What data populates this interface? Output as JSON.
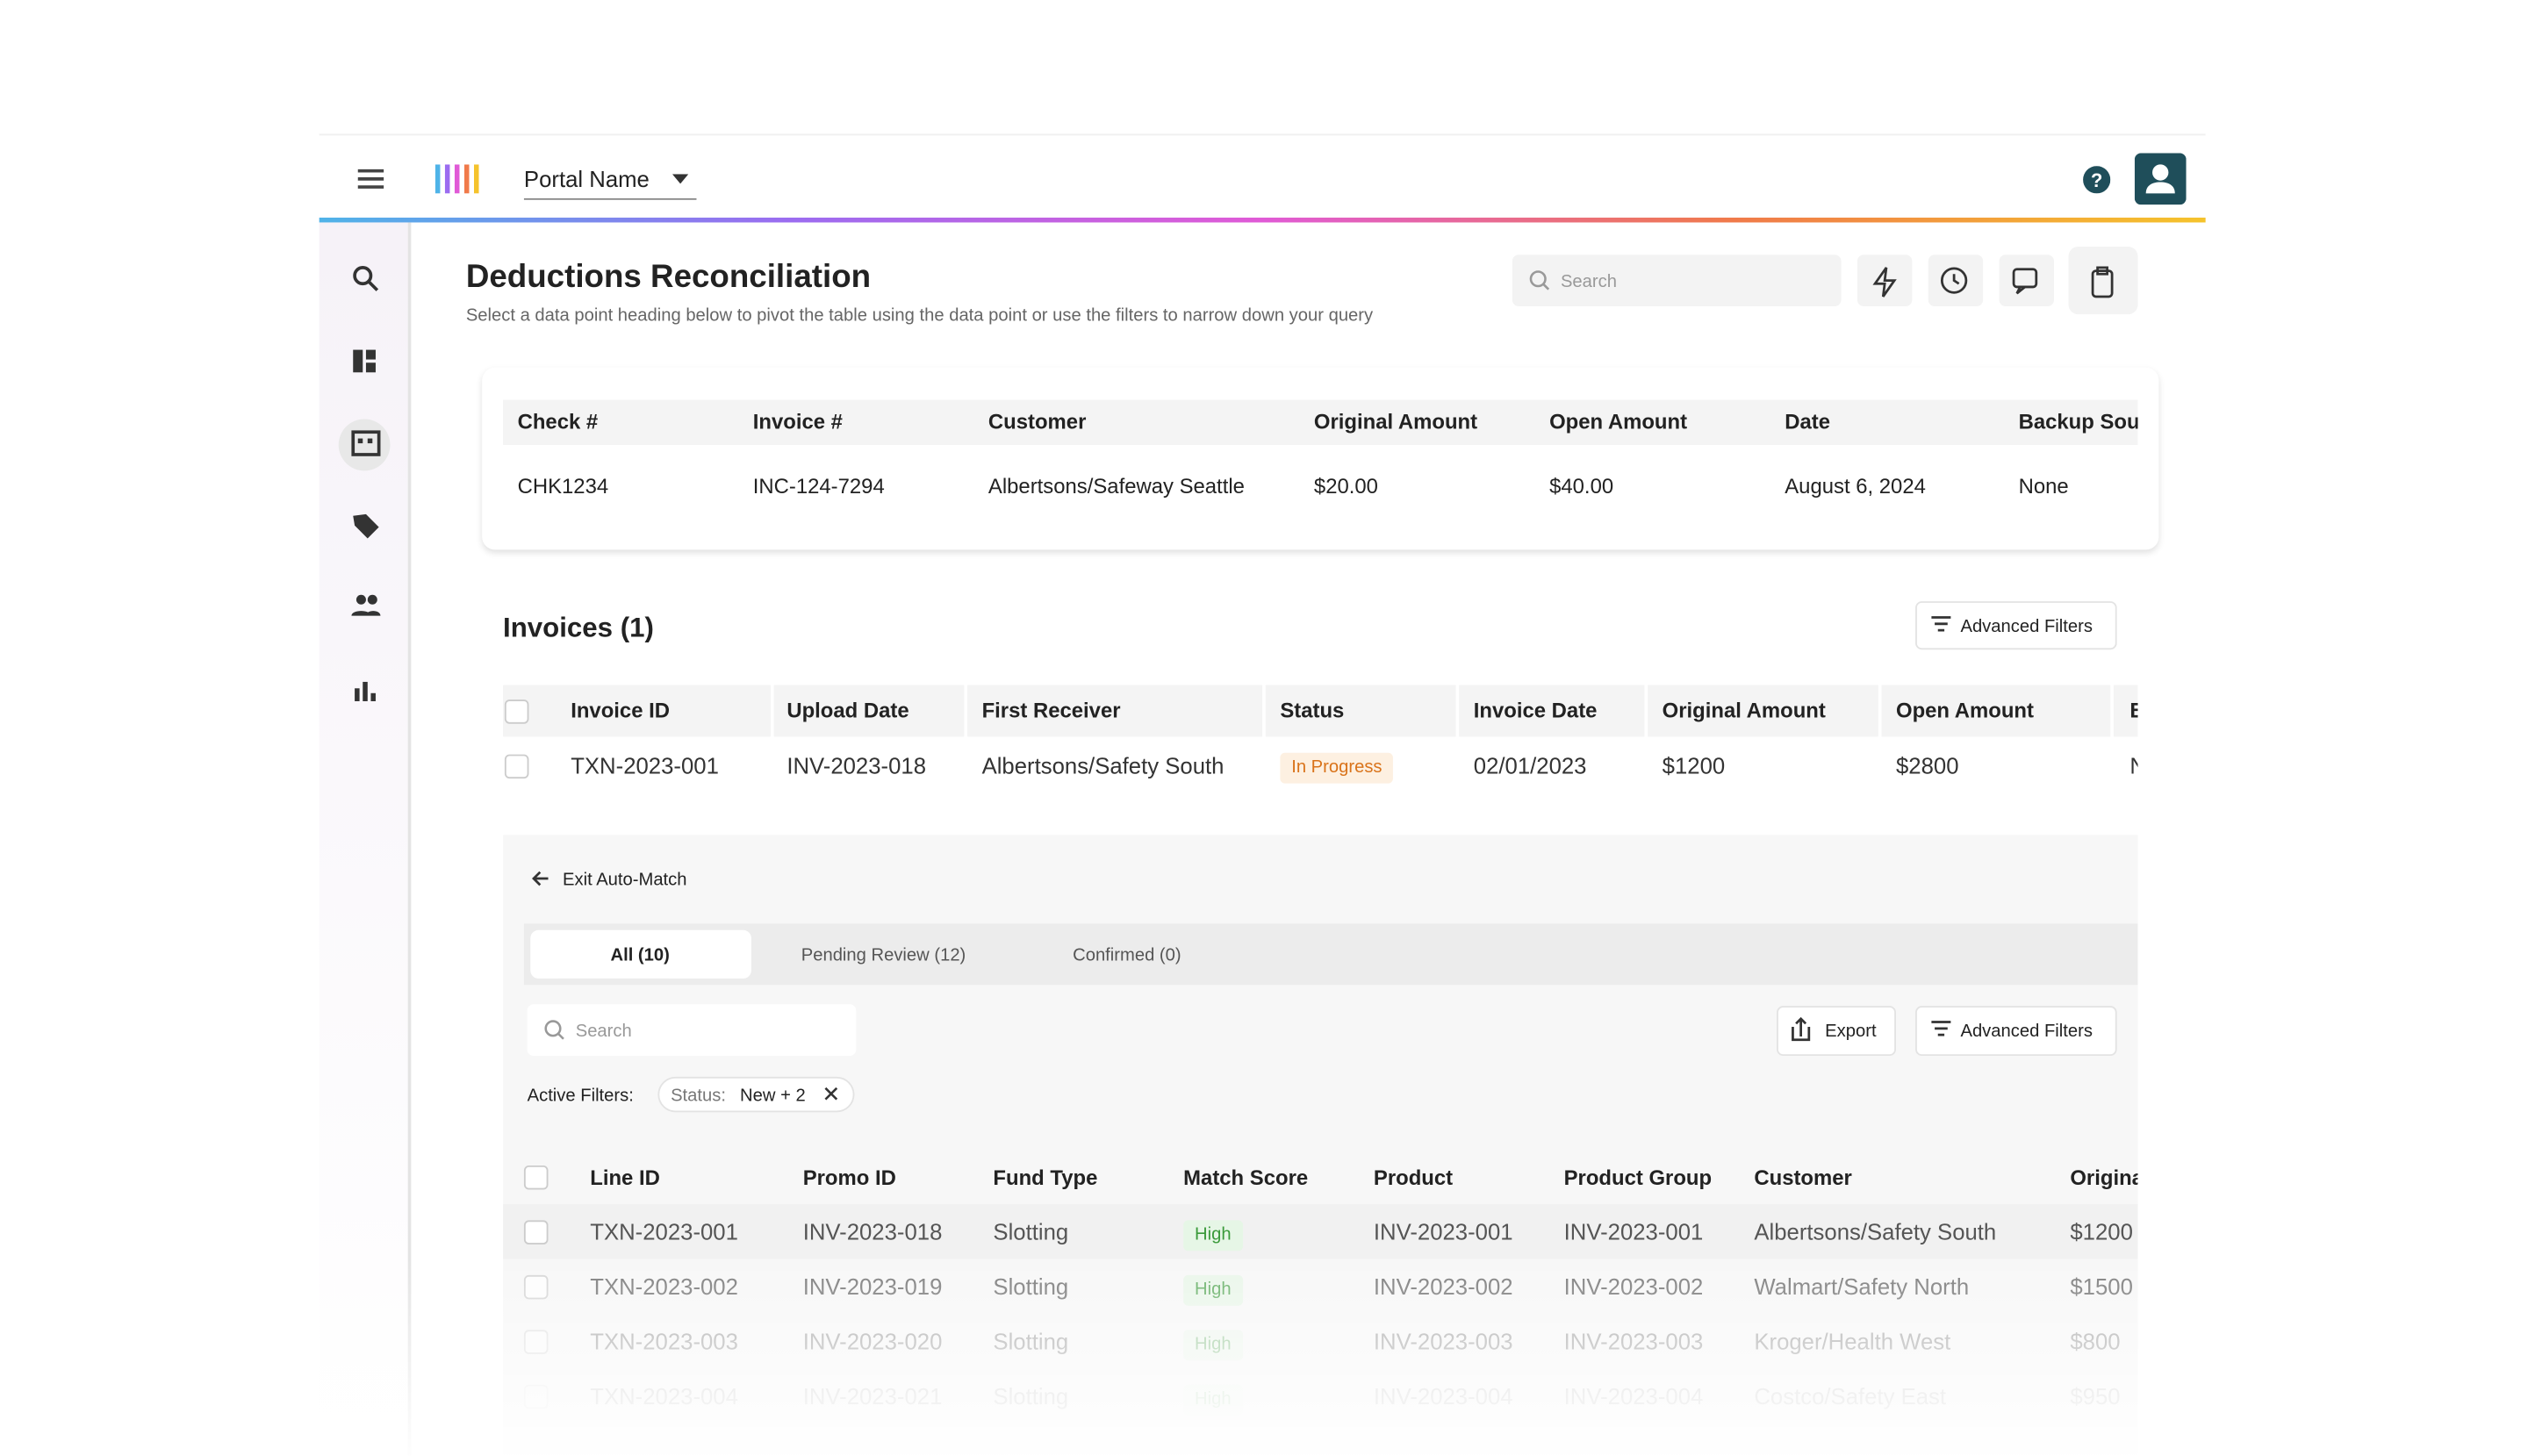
{
  "header": {
    "portal_name": "Portal Name"
  },
  "page": {
    "title": "Deductions Reconciliation",
    "subtitle": "Select a data point heading below to pivot the table using the data point or use the filters to narrow down your query",
    "search_placeholder": "Search"
  },
  "summary": {
    "columns": [
      "Check #",
      "Invoice #",
      "Customer",
      "Original Amount",
      "Open Amount",
      "Date",
      "Backup Source"
    ],
    "row": [
      "CHK1234",
      "INC-124-7294",
      "Albertsons/Safeway Seattle",
      "$20.00",
      "$40.00",
      "August 6, 2024",
      "None"
    ]
  },
  "invoices": {
    "title": "Invoices (1)",
    "filter_button": "Advanced Filters",
    "columns": [
      "Invoice ID",
      "Upload Date",
      "First Receiver",
      "Status",
      "Invoice Date",
      "Original Amount",
      "Open Amount",
      "Backup Source"
    ],
    "rows": [
      [
        "TXN-2023-001",
        "INV-2023-018",
        "Albertsons/Safety South",
        "In Progress",
        "02/01/2023",
        "$1200",
        "$2800",
        "None"
      ]
    ]
  },
  "auto_match": {
    "exit_label": "Exit Auto-Match",
    "tabs": [
      "All (10)",
      "Pending Review (12)",
      "Confirmed (0)"
    ],
    "search_placeholder": "Search",
    "export_label": "Export",
    "filter_button": "Advanced Filters",
    "active_filters_label": "Active Filters:",
    "filter_chip": {
      "key": "Status:",
      "value": "New + 2"
    },
    "columns": [
      "Line ID",
      "Promo ID",
      "Fund Type",
      "Match Score",
      "Product",
      "Product Group",
      "Customer",
      "Original Amount"
    ],
    "rows": [
      [
        "TXN-2023-001",
        "INV-2023-018",
        "Slotting",
        "High",
        "INV-2023-001",
        "INV-2023-001",
        "Albertsons/Safety South",
        "$1200"
      ],
      [
        "TXN-2023-002",
        "INV-2023-019",
        "Slotting",
        "High",
        "INV-2023-002",
        "INV-2023-002",
        "Walmart/Safety North",
        "$1500"
      ],
      [
        "TXN-2023-003",
        "INV-2023-020",
        "Slotting",
        "High",
        "INV-2023-003",
        "INV-2023-003",
        "Kroger/Health West",
        "$800"
      ],
      [
        "TXN-2023-004",
        "INV-2023-021",
        "Slotting",
        "High",
        "INV-2023-004",
        "INV-2023-004",
        "Costco/Safety East",
        "$950"
      ]
    ]
  }
}
